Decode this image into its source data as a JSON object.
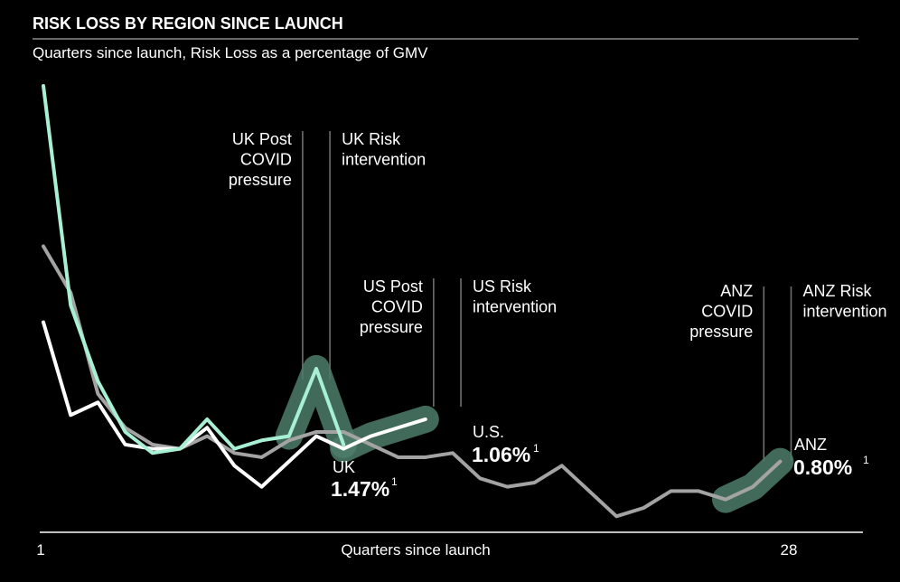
{
  "colors": {
    "background": "#000000",
    "uk": "#ffffff",
    "us": "#a3a3a3",
    "anz": "#a8f0d4",
    "highlight": "#4d7d6b",
    "vline": "#6e6e6e",
    "rule": "#8a8a8a"
  },
  "chart_data": {
    "type": "line",
    "title": "RISK LOSS BY REGION SINCE LAUNCH",
    "subtitle": "Quarters since launch, Risk Loss as a percentage of GMV",
    "xlabel": "Quarters since launch",
    "x_tick_labels": [
      "1",
      "28"
    ],
    "xlim": [
      1,
      31
    ],
    "y_scale_note": "no y-axis shown",
    "ylim": [
      0,
      100
    ],
    "grid": false,
    "series": [
      {
        "name": "UK",
        "key": "uk",
        "x": [
          1,
          2,
          3,
          4,
          5,
          6,
          7,
          8,
          9,
          10,
          11,
          12,
          13,
          14,
          15
        ],
        "values": [
          44,
          22,
          25,
          15,
          14,
          14,
          19,
          10,
          5,
          11,
          17,
          14,
          17,
          19,
          21
        ]
      },
      {
        "name": "U.S.",
        "key": "us",
        "x": [
          1,
          2,
          3,
          4,
          5,
          6,
          7,
          8,
          9,
          10,
          11,
          12,
          13,
          14,
          15,
          16,
          17,
          18,
          19,
          20,
          21,
          22,
          23,
          24,
          25,
          26,
          27,
          28
        ],
        "values": [
          62,
          51,
          27,
          19,
          15,
          14,
          17,
          13,
          12,
          16,
          18,
          18,
          15,
          12,
          12,
          13,
          7,
          5,
          6,
          10,
          4,
          -2,
          0,
          4,
          4,
          2,
          5,
          11
        ]
      },
      {
        "name": "ANZ",
        "key": "anz",
        "x": [
          1,
          2,
          3,
          4,
          5,
          6,
          7,
          8,
          9,
          10,
          11,
          12
        ],
        "values": [
          100,
          48,
          30,
          18,
          13,
          14,
          21,
          14,
          16,
          17,
          33,
          15
        ]
      }
    ],
    "annotations": [
      {
        "x": 10.5,
        "text": [
          "UK Post",
          "COVID",
          "pressure"
        ],
        "side": "left"
      },
      {
        "x": 11.5,
        "text": [
          "UK Risk",
          "intervention"
        ],
        "side": "right"
      },
      {
        "x": 15.3,
        "text": [
          "US Post",
          "COVID",
          "pressure"
        ],
        "side": "left"
      },
      {
        "x": 16.3,
        "text": [
          "US Risk",
          "intervention"
        ],
        "side": "right"
      },
      {
        "x": 27.4,
        "text": [
          "ANZ",
          "COVID",
          "pressure"
        ],
        "side": "left"
      },
      {
        "x": 28.4,
        "text": [
          "ANZ Risk",
          "intervention"
        ],
        "side": "right"
      }
    ],
    "highlights": [
      {
        "series": "anz",
        "from": 10,
        "to": 12
      },
      {
        "series": "uk",
        "from": 12,
        "to": 16
      },
      {
        "series": "us",
        "from": 26,
        "to": 28
      }
    ],
    "end_labels": [
      {
        "series": "uk",
        "name": "UK",
        "value": "1.47%",
        "sup": "1"
      },
      {
        "series": "us",
        "name": "U.S.",
        "value": "1.06%",
        "sup": "1"
      },
      {
        "series": "anz",
        "name": "ANZ",
        "value": "0.80%",
        "sup": "1"
      }
    ]
  }
}
